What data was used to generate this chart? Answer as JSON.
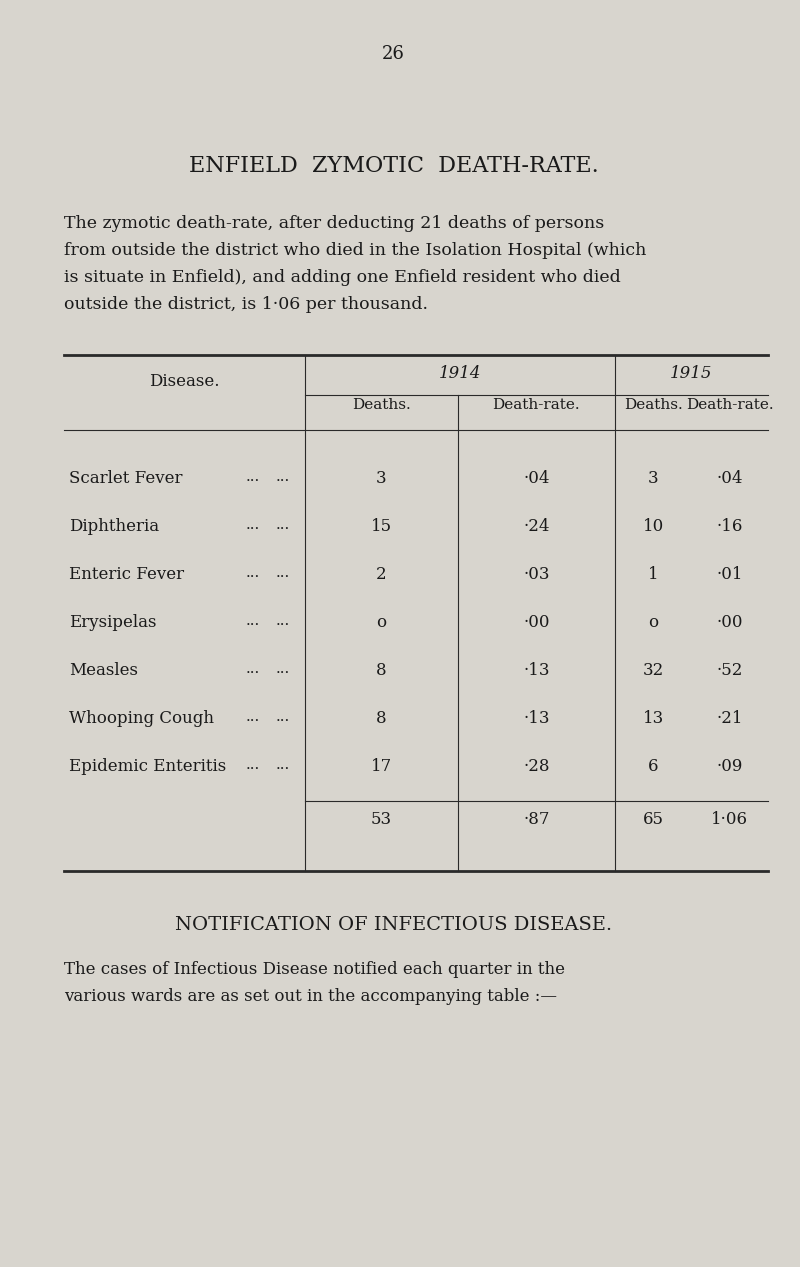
{
  "page_number": "26",
  "bg_color": "#d8d5ce",
  "title": "ENFIELD  ZYMOTIC  DEATH-RATE.",
  "intro_text": "The zymotic death-rate, after deducting 21 deaths of persons\nfrom outside the district who died in the Isolation Hospital (which\nis situate in Enfield), and adding one Enfield resident who died\noutside the district, is 1·06 per thousand.",
  "year_headers": [
    "1914",
    "1915"
  ],
  "col_headers": [
    "Deaths.",
    "Death-rate.",
    "Deaths.",
    "Death-rate."
  ],
  "diseases": [
    "Scarlet Fever",
    "Diphtheria",
    "Enteric Fever",
    "Erysipelas",
    "Measles",
    "Whooping Cough",
    "Epidemic Enteritis"
  ],
  "dots_col1": [
    "...",
    "...",
    "...",
    "...",
    "...",
    "...",
    "..."
  ],
  "dots_col2": [
    "...",
    "...",
    "...",
    "...",
    "...",
    "...",
    "..."
  ],
  "data_1914_deaths": [
    "3",
    "15",
    "2",
    "o",
    "8",
    "8",
    "17"
  ],
  "data_1914_rates": [
    "·04",
    "·24",
    "·03",
    "·00",
    "·13",
    "·13",
    "·28"
  ],
  "data_1915_deaths": [
    "3",
    "10",
    "1",
    "o",
    "32",
    "13",
    "6"
  ],
  "data_1915_rates": [
    "·04",
    "·16",
    "·01",
    "·00",
    "·52",
    "·21",
    "·09"
  ],
  "total_1914_deaths": "53",
  "total_1914_rate": "·87",
  "total_1915_deaths": "65",
  "total_1915_rate": "1·06",
  "footer_title": "NOTIFICATION OF INFECTIOUS DISEASE.",
  "footer_text": "The cases of Infectious Disease notified each quarter in the\nvarious wards are as set out in the accompanying table :—"
}
